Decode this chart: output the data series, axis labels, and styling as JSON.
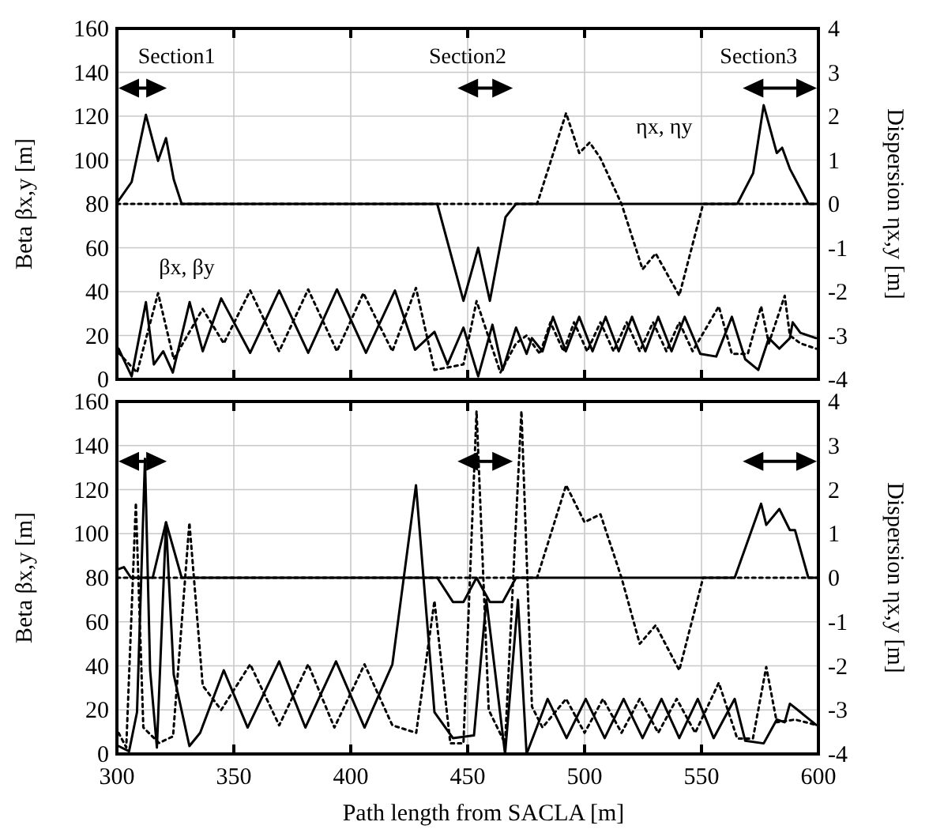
{
  "chart_data": [
    {
      "type": "line",
      "ylabel": "Beta βx,y  [m]",
      "y2label": "Dispersion ηx,y  [m]",
      "xlim": [
        300,
        600
      ],
      "xticks": [
        300,
        350,
        400,
        450,
        500,
        550,
        600
      ],
      "ylim": [
        0,
        160
      ],
      "yticks": [
        0,
        20,
        40,
        60,
        80,
        100,
        120,
        140,
        160
      ],
      "y2lim": [
        -4,
        4
      ],
      "y2ticks": [
        -4,
        -3,
        -2,
        -1,
        0,
        1,
        2,
        3,
        4
      ],
      "grid": true,
      "tick_labels": "y",
      "annotations": [
        "Section1",
        "Section2",
        "Section3",
        "βx, βy",
        "ηx, ηy"
      ],
      "series": [
        {
          "color": "#000000",
          "line_style": "solid",
          "x": [
            300.7,
            306.3,
            312.4,
            315.8,
            319.8,
            323.9,
            331.1,
            336.7,
            344.6,
            357,
            369.4,
            381.8,
            394.1,
            406.5,
            418.9,
            427.5,
            435.8,
            441.4,
            448.2,
            454.5,
            460.6,
            465,
            470.7,
            475.2,
            477.5,
            482,
            486.5,
            492,
            497.7,
            503.4,
            509,
            514.6,
            520.3,
            526,
            531.5,
            537.2,
            542.8,
            549.5,
            556.3,
            563,
            568.7,
            574.3,
            578.8,
            583.3,
            587.8,
            589,
            592.3,
            599
          ],
          "values": [
            14,
            1.4,
            35.2,
            6.8,
            12.8,
            3.1,
            35.2,
            12.8,
            36.9,
            12.1,
            40.5,
            12.1,
            41,
            12.1,
            40.5,
            13.5,
            21.7,
            6.8,
            23.6,
            1.4,
            24.9,
            4.3,
            23.6,
            11.6,
            18.8,
            12.8,
            28.5,
            12.8,
            28.5,
            12.8,
            28.5,
            12.8,
            28.5,
            12.8,
            28.5,
            12.8,
            28.5,
            11.6,
            10.4,
            28.5,
            9.2,
            4.3,
            18.8,
            14,
            18.8,
            26,
            21.2,
            18.8
          ]
        },
        {
          "color": "#000000",
          "line_style": "dotted",
          "x": [
            300.7,
            308.6,
            317.6,
            324.3,
            336.7,
            345.7,
            357,
            369.4,
            381.8,
            394.1,
            405.4,
            417.8,
            427.9,
            435.8,
            448.2,
            453.8,
            464,
            470.7,
            475.2,
            480.9,
            485.4,
            491,
            495.5,
            501.1,
            506.8,
            512.4,
            518,
            523.6,
            529.3,
            535,
            540.5,
            546.2,
            557.4,
            563,
            569.8,
            575.5,
            578.8,
            585.6,
            587.8,
            592.3,
            599
          ],
          "values": [
            12.1,
            3.1,
            39.3,
            9.2,
            32.1,
            16.4,
            40.5,
            12.8,
            41,
            12.8,
            39.3,
            12.8,
            41.7,
            4.3,
            6.8,
            35.7,
            3.1,
            16.4,
            20,
            11.6,
            26,
            12.8,
            26,
            12.8,
            26,
            12.8,
            26,
            12.8,
            26,
            12.8,
            26,
            12.8,
            33.3,
            11.6,
            11.6,
            33.3,
            16.4,
            38.1,
            20,
            16.4,
            14
          ]
        },
        {
          "color": "#000000",
          "line_style": "solid",
          "axis": "y2",
          "x": [
            300,
            306.3,
            312.4,
            317.6,
            321,
            324.3,
            327.7,
            437,
            448.2,
            454.5,
            459.5,
            466.2,
            470.7,
            565.3,
            572.1,
            576.6,
            582.2,
            584.5,
            587.8,
            595.7,
            600
          ],
          "values": [
            0.02,
            0.5,
            2.03,
            0.98,
            1.5,
            0.56,
            0,
            0,
            -2.21,
            -1.0,
            -2.21,
            -0.3,
            0,
            0,
            0.7,
            2.25,
            1.16,
            1.28,
            0.8,
            0,
            0
          ]
        },
        {
          "color": "#000000",
          "line_style": "dotted",
          "axis": "y2",
          "x": [
            300,
            479.7,
            492.1,
            497.7,
            502.2,
            506.8,
            515.8,
            524.8,
            530.4,
            540.5,
            550.7,
            600
          ],
          "values": [
            0,
            0,
            2.07,
            1.16,
            1.4,
            1.04,
            0,
            -1.49,
            -1.13,
            -2.09,
            0,
            0
          ]
        }
      ]
    },
    {
      "type": "line",
      "xlabel": "Path length from SACLA  [m]",
      "ylabel": "Beta βx,y  [m]",
      "y2label": "Dispersion ηx,y  [m]",
      "xlim": [
        300,
        600
      ],
      "xticks": [
        300,
        350,
        400,
        450,
        500,
        550,
        600
      ],
      "ylim": [
        0,
        160
      ],
      "yticks": [
        0,
        20,
        40,
        60,
        80,
        100,
        120,
        140,
        160
      ],
      "y2lim": [
        -4,
        4
      ],
      "y2ticks": [
        -4,
        -3,
        -2,
        -1,
        0,
        1,
        2,
        3,
        4
      ],
      "grid": true,
      "series": [
        {
          "color": "#000000",
          "line_style": "solid",
          "x": [
            300.7,
            305.2,
            308.6,
            312,
            314.2,
            317.1,
            321,
            324.3,
            331,
            335.6,
            345.7,
            355.9,
            369.4,
            380.6,
            393.7,
            405.9,
            417.8,
            427.9,
            435.8,
            443.7,
            452.7,
            458,
            466,
            471.5,
            475.2,
            484.2,
            492.3,
            500.5,
            508.6,
            516.7,
            524.8,
            532.9,
            540.5,
            548.4,
            555.2,
            564.2,
            568.7,
            576.6,
            582.2,
            585.6,
            587.8,
            592.3,
            599
          ],
          "values": [
            3.6,
            1.2,
            19,
            134,
            38,
            2.9,
            105,
            36,
            3.6,
            9.6,
            38,
            12,
            42,
            12,
            42,
            12,
            40.7,
            122,
            19,
            7.2,
            8.4,
            70,
            0,
            70,
            0,
            25,
            7.2,
            25,
            7.2,
            25,
            7.2,
            25,
            7.2,
            25,
            7.2,
            25,
            6,
            4.8,
            15.6,
            14.4,
            22.8,
            19,
            13.2
          ]
        },
        {
          "color": "#000000",
          "line_style": "dotted",
          "x": [
            300.7,
            304,
            308.1,
            311.3,
            318,
            324,
            331,
            336.7,
            344.6,
            357,
            369.4,
            381.8,
            393,
            405.9,
            417.8,
            428,
            435.8,
            442.6,
            448.2,
            453.8,
            459,
            466,
            473,
            477.5,
            482,
            492.1,
            500,
            507.9,
            515.8,
            523.6,
            531.5,
            539.4,
            547.3,
            557.4,
            565.3,
            572,
            577.7,
            582.2,
            590,
            599
          ],
          "values": [
            9.6,
            3,
            114,
            12,
            5,
            8,
            105,
            31,
            20,
            40.7,
            13,
            40.7,
            12,
            40.7,
            13,
            9.6,
            69.5,
            4.8,
            4.8,
            155.7,
            20,
            4.8,
            155.7,
            21.5,
            12,
            25,
            9.6,
            25,
            9.6,
            25,
            9.6,
            25,
            9.6,
            32.3,
            7,
            7,
            39.5,
            14.4,
            15.6,
            13.2
          ]
        },
        {
          "color": "#000000",
          "line_style": "solid",
          "axis": "y2",
          "x": [
            300,
            303,
            306,
            315.3,
            321,
            327.7,
            437,
            443.7,
            448.2,
            453.8,
            459.5,
            465,
            470.7,
            564.2,
            575.5,
            577.7,
            583.3,
            587.8,
            590,
            595.7,
            600
          ],
          "values": [
            0.18,
            0.24,
            0,
            0,
            1.26,
            0,
            0,
            -0.55,
            -0.55,
            0,
            -0.55,
            -0.55,
            0,
            0,
            1.68,
            1.2,
            1.56,
            1.08,
            1.08,
            0,
            0
          ]
        },
        {
          "color": "#000000",
          "line_style": "dotted",
          "axis": "y2",
          "x": [
            300,
            479.7,
            492.1,
            500,
            506.8,
            515.8,
            523.6,
            530.4,
            540.5,
            550.7,
            600
          ],
          "values": [
            0,
            0,
            2.1,
            1.26,
            1.44,
            0,
            -1.5,
            -1.08,
            -2.1,
            0,
            0
          ]
        }
      ]
    }
  ]
}
